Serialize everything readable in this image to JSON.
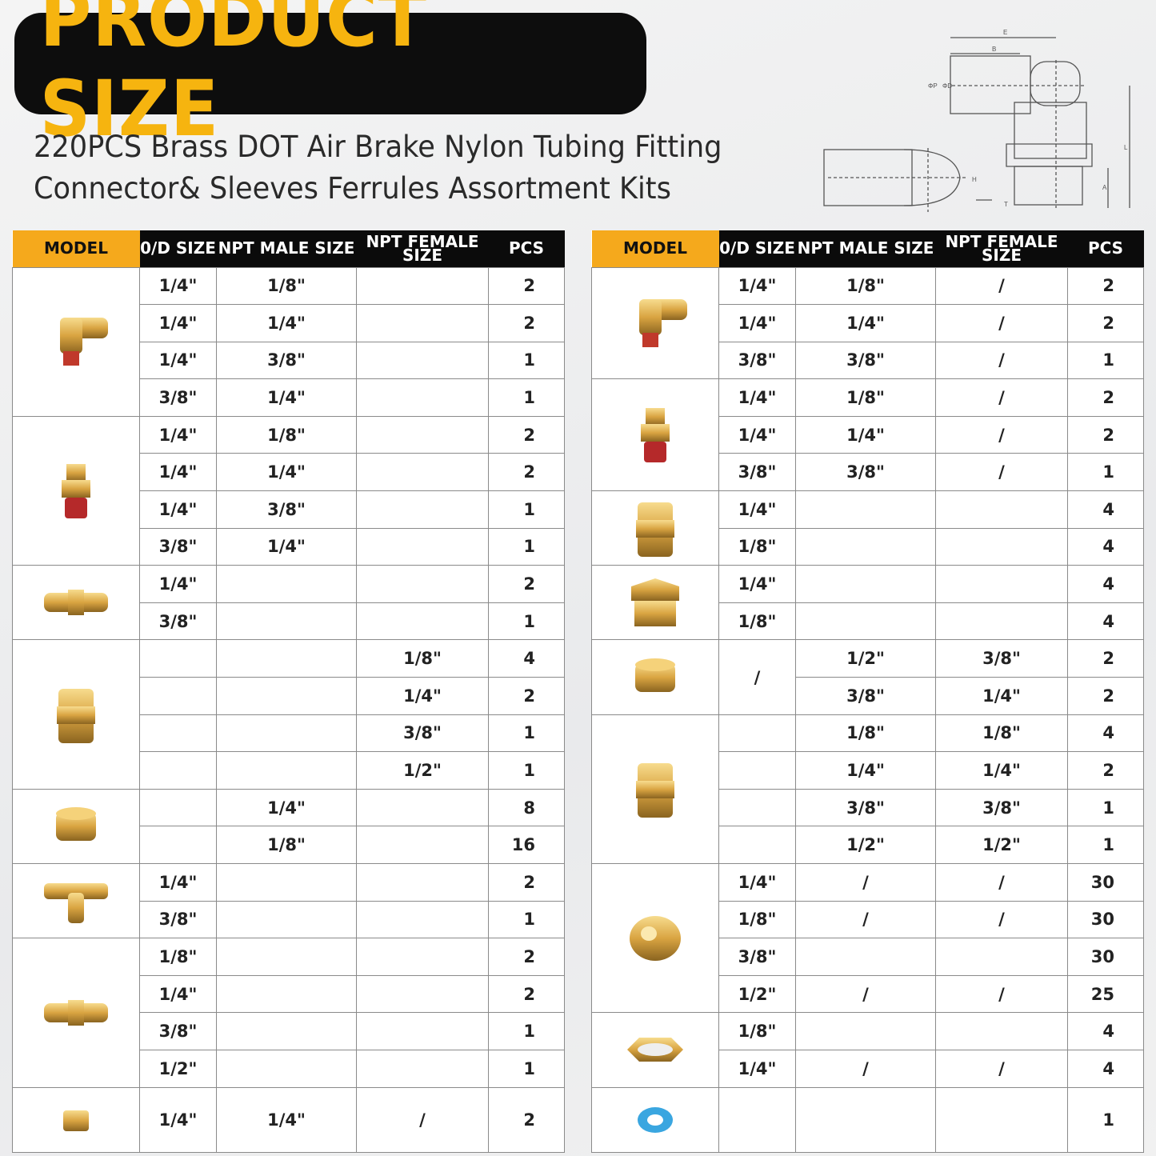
{
  "title": "PRODUCT SIZE",
  "subtitle": [
    "220PCS Brass DOT Air Brake Nylon Tubing Fitting",
    "Connector& Sleeves Ferrules Assortment Kits"
  ],
  "diagram": {
    "icon": "elbow-fitting-dimension-drawing",
    "labels": [
      "E",
      "B",
      "ΦP",
      "ΦD",
      "L",
      "H",
      "A",
      "T"
    ]
  },
  "colors": {
    "accent": "#f5a91c",
    "title_text": "#f6b40f",
    "header_bg": "#0b0b0b",
    "brass": "#d9a441"
  },
  "columns": [
    "MODEL",
    "0/D SIZE",
    "NPT MALE SIZE",
    "NPT FEMALE SIZE",
    "PCS"
  ],
  "left_table": [
    {
      "icon": "male-elbow-push-fitting",
      "rows": [
        [
          "1/4\"",
          "1/8\"",
          "",
          "2"
        ],
        [
          "1/4\"",
          "1/4\"",
          "",
          "2"
        ],
        [
          "1/4\"",
          "3/8\"",
          "",
          "1"
        ],
        [
          "3/8\"",
          "1/4\"",
          "",
          "1"
        ]
      ]
    },
    {
      "icon": "male-connector-push-fitting",
      "rows": [
        [
          "1/4\"",
          "1/8\"",
          "",
          "2"
        ],
        [
          "1/4\"",
          "1/4\"",
          "",
          "2"
        ],
        [
          "1/4\"",
          "3/8\"",
          "",
          "1"
        ],
        [
          "3/8\"",
          "1/4\"",
          "",
          "1"
        ]
      ]
    },
    {
      "icon": "push-union-fitting",
      "rows": [
        [
          "1/4\"",
          "",
          "",
          "2"
        ],
        [
          "3/8\"",
          "",
          "",
          "1"
        ]
      ]
    },
    {
      "icon": "female-coupling-fitting",
      "rows": [
        [
          "",
          "",
          "1/8\"",
          "4"
        ],
        [
          "",
          "",
          "1/4\"",
          "2"
        ],
        [
          "",
          "",
          "3/8\"",
          "1"
        ],
        [
          "",
          "",
          "1/2\"",
          "1"
        ]
      ]
    },
    {
      "icon": "hex-socket-plug",
      "rows": [
        [
          "",
          "1/4\"",
          "",
          "8"
        ],
        [
          "",
          "1/8\"",
          "",
          "16"
        ]
      ]
    },
    {
      "icon": "compression-tee-fitting",
      "rows": [
        [
          "1/4\"",
          "",
          "",
          "2"
        ],
        [
          "3/8\"",
          "",
          "",
          "1"
        ]
      ]
    },
    {
      "icon": "compression-union-fitting",
      "rows": [
        [
          "1/8\"",
          "",
          "",
          "2"
        ],
        [
          "1/4\"",
          "",
          "",
          "2"
        ],
        [
          "3/8\"",
          "",
          "",
          "1"
        ],
        [
          "1/2\"",
          "",
          "",
          "1"
        ]
      ]
    },
    {
      "icon": "small-male-connector",
      "rows": [
        [
          "1/4\"",
          "1/4\"",
          "/",
          "2"
        ]
      ]
    }
  ],
  "right_table": [
    {
      "icon": "swivel-elbow-fitting",
      "rows": [
        [
          "1/4\"",
          "1/8\"",
          "/",
          "2"
        ],
        [
          "1/4\"",
          "1/4\"",
          "/",
          "2"
        ],
        [
          "3/8\"",
          "3/8\"",
          "/",
          "1"
        ]
      ]
    },
    {
      "icon": "swivel-male-connector",
      "rows": [
        [
          "1/4\"",
          "1/8\"",
          "/",
          "2"
        ],
        [
          "1/4\"",
          "1/4\"",
          "/",
          "2"
        ],
        [
          "3/8\"",
          "3/8\"",
          "/",
          "1"
        ]
      ]
    },
    {
      "icon": "close-nipple",
      "rows": [
        [
          "1/4\"",
          "",
          "",
          "4"
        ],
        [
          "1/8\"",
          "",
          "",
          "4"
        ]
      ]
    },
    {
      "icon": "hex-bushing",
      "rows": [
        [
          "1/4\"",
          "",
          "",
          "4"
        ],
        [
          "1/8\"",
          "",
          "",
          "4"
        ]
      ]
    },
    {
      "icon": "reducing-bushing",
      "od_merged": "/",
      "rows": [
        [
          "",
          "1/2\"",
          "3/8\"",
          "2"
        ],
        [
          "",
          "3/8\"",
          "1/4\"",
          "2"
        ]
      ]
    },
    {
      "icon": "hex-nipple",
      "rows": [
        [
          "",
          "1/8\"",
          "1/8\"",
          "4"
        ],
        [
          "",
          "1/4\"",
          "1/4\"",
          "2"
        ],
        [
          "",
          "3/8\"",
          "3/8\"",
          "1"
        ],
        [
          "",
          "1/2\"",
          "1/2\"",
          "1"
        ]
      ]
    },
    {
      "icon": "compression-sleeve-ferrule",
      "rows": [
        [
          "1/4\"",
          "/",
          "/",
          "30"
        ],
        [
          "1/8\"",
          "/",
          "/",
          "30"
        ],
        [
          "3/8\"",
          "",
          "",
          "30"
        ],
        [
          "1/2\"",
          "/",
          "/",
          "25"
        ]
      ]
    },
    {
      "icon": "hex-lock-nut",
      "rows": [
        [
          "1/8\"",
          "",
          "",
          "4"
        ],
        [
          "1/4\"",
          "/",
          "/",
          "4"
        ]
      ]
    },
    {
      "icon": "ptfe-thread-seal-tape",
      "rows": [
        [
          "",
          "",
          "",
          "1"
        ]
      ]
    }
  ]
}
